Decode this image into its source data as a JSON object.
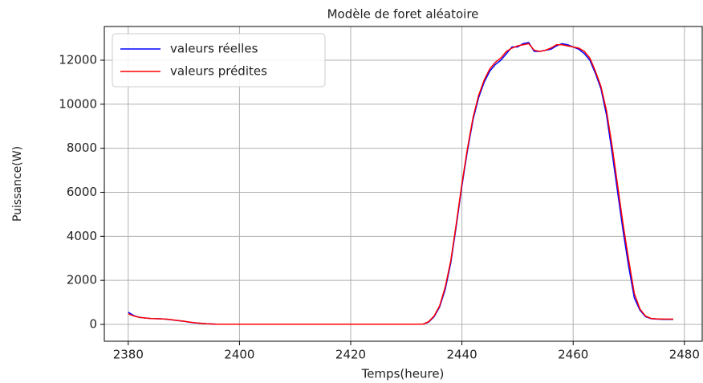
{
  "chart_data": {
    "type": "line",
    "title": "Modèle de foret aléatoire",
    "xlabel": "Temps(heure)",
    "ylabel": "Puissance(W)",
    "x": [
      2380,
      2381,
      2382,
      2383,
      2384,
      2385,
      2386,
      2387,
      2388,
      2389,
      2390,
      2391,
      2392,
      2393,
      2394,
      2395,
      2396,
      2397,
      2398,
      2399,
      2400,
      2401,
      2402,
      2403,
      2404,
      2405,
      2406,
      2407,
      2408,
      2409,
      2410,
      2411,
      2412,
      2413,
      2414,
      2415,
      2416,
      2417,
      2418,
      2419,
      2420,
      2421,
      2422,
      2423,
      2424,
      2425,
      2426,
      2427,
      2428,
      2429,
      2430,
      2431,
      2432,
      2433,
      2434,
      2435,
      2436,
      2437,
      2438,
      2439,
      2440,
      2441,
      2442,
      2443,
      2444,
      2445,
      2446,
      2447,
      2448,
      2449,
      2450,
      2451,
      2452,
      2453,
      2454,
      2455,
      2456,
      2457,
      2458,
      2459,
      2460,
      2461,
      2462,
      2463,
      2464,
      2465,
      2466,
      2467,
      2468,
      2469,
      2470,
      2471,
      2472,
      2473,
      2474,
      2475,
      2476,
      2477,
      2478
    ],
    "series": [
      {
        "name": "valeurs réelles",
        "color": "#0000ff",
        "values": [
          550,
          400,
          320,
          290,
          270,
          260,
          250,
          230,
          200,
          170,
          140,
          100,
          70,
          50,
          30,
          20,
          10,
          10,
          10,
          10,
          10,
          10,
          10,
          10,
          10,
          10,
          10,
          10,
          10,
          10,
          10,
          10,
          10,
          10,
          10,
          10,
          10,
          10,
          10,
          10,
          10,
          10,
          10,
          10,
          10,
          10,
          10,
          10,
          10,
          10,
          10,
          10,
          10,
          10,
          100,
          350,
          800,
          1600,
          2800,
          4500,
          6300,
          7900,
          9300,
          10300,
          11000,
          11500,
          11800,
          12000,
          12300,
          12600,
          12600,
          12750,
          12800,
          12400,
          12400,
          12450,
          12500,
          12650,
          12750,
          12700,
          12600,
          12500,
          12300,
          12000,
          11400,
          10700,
          9500,
          7800,
          6000,
          4200,
          2600,
          1200,
          650,
          350,
          260,
          240,
          230,
          230,
          230
        ]
      },
      {
        "name": "valeurs prédites",
        "color": "#ff0000",
        "values": [
          480,
          380,
          320,
          290,
          270,
          260,
          250,
          235,
          205,
          175,
          145,
          105,
          75,
          50,
          30,
          20,
          10,
          10,
          10,
          10,
          10,
          10,
          10,
          10,
          10,
          10,
          10,
          10,
          10,
          10,
          10,
          10,
          10,
          10,
          10,
          10,
          10,
          10,
          10,
          10,
          10,
          10,
          10,
          10,
          10,
          10,
          10,
          10,
          10,
          10,
          10,
          10,
          10,
          10,
          120,
          380,
          850,
          1700,
          2900,
          4600,
          6400,
          8000,
          9400,
          10400,
          11100,
          11600,
          11900,
          12100,
          12400,
          12550,
          12650,
          12700,
          12750,
          12450,
          12400,
          12450,
          12550,
          12700,
          12700,
          12650,
          12600,
          12550,
          12400,
          12100,
          11500,
          10800,
          9700,
          8100,
          6300,
          4500,
          2900,
          1400,
          700,
          380,
          270,
          250,
          240,
          240,
          240
        ]
      }
    ],
    "xlim": [
      2375.7,
      2483.2
    ],
    "ylim": [
      -766,
      13530
    ],
    "xticks": [
      2380,
      2400,
      2420,
      2440,
      2460,
      2480
    ],
    "yticks": [
      0,
      2000,
      4000,
      6000,
      8000,
      10000,
      12000
    ],
    "grid": true,
    "legend": "upper left"
  }
}
